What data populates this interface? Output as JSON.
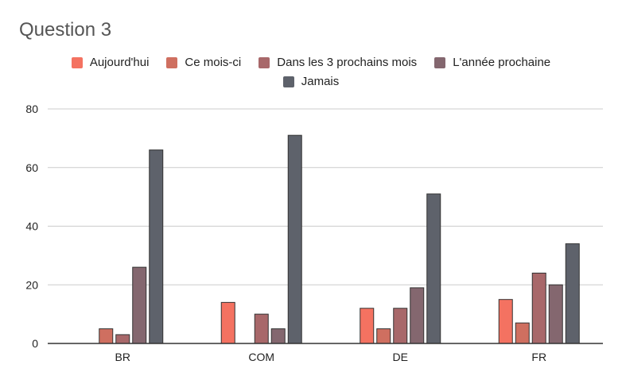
{
  "chart_data": {
    "type": "bar",
    "title": "Question 3",
    "xlabel": "",
    "ylabel": "",
    "categories": [
      "BR",
      "COM",
      "DE",
      "FR"
    ],
    "series": [
      {
        "name": "Aujourd'hui",
        "color": "#F47261",
        "values": [
          0,
          14,
          12,
          15
        ]
      },
      {
        "name": "Ce mois-ci",
        "color": "#CF6F60",
        "values": [
          5,
          0,
          5,
          7
        ]
      },
      {
        "name": "Dans les 3 prochains mois",
        "color": "#A8686A",
        "values": [
          3,
          10,
          12,
          24
        ]
      },
      {
        "name": "L'année prochaine",
        "color": "#84676F",
        "values": [
          26,
          5,
          19,
          20
        ]
      },
      {
        "name": "Jamais",
        "color": "#5E626B",
        "values": [
          66,
          71,
          51,
          34
        ]
      }
    ],
    "ylim": [
      0,
      80
    ],
    "yticks": [
      0,
      20,
      40,
      60,
      80
    ],
    "grid": true,
    "legend_position": "top-center"
  }
}
